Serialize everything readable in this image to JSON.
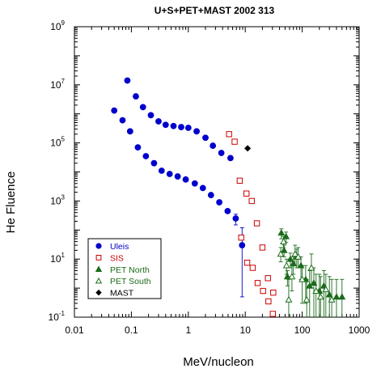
{
  "chart_data": {
    "type": "scatter",
    "title": "U+S+PET+MAST 2002 313",
    "xlabel": "MeV/nucleon",
    "ylabel": "He Fluence",
    "x_scale": "log",
    "y_scale": "log",
    "xlim": [
      0.01,
      1000
    ],
    "ylim": [
      0.1,
      1000000000
    ],
    "x_ticks": [
      {
        "value": 0.01,
        "label": "0.01"
      },
      {
        "value": 0.1,
        "label": "0.1"
      },
      {
        "value": 1,
        "label": "1"
      },
      {
        "value": 10,
        "label": "10"
      },
      {
        "value": 100,
        "label": "100"
      },
      {
        "value": 1000,
        "label": "1000"
      }
    ],
    "y_ticks": [
      {
        "value": 0.1,
        "base": "10",
        "exp": "-1"
      },
      {
        "value": 10,
        "base": "10",
        "exp": "1"
      },
      {
        "value": 1000,
        "base": "10",
        "exp": "3"
      },
      {
        "value": 100000,
        "base": "10",
        "exp": "5"
      },
      {
        "value": 10000000,
        "base": "10",
        "exp": "7"
      },
      {
        "value": 1000000000,
        "base": "10",
        "exp": "9"
      }
    ],
    "grid": false,
    "legend_position": "bottom-left",
    "series": [
      {
        "name": "Uleis",
        "color": "#0000cc",
        "marker": "filled-circle",
        "points": [
          {
            "x": 0.085,
            "y": 14000000
          },
          {
            "x": 0.12,
            "y": 4000000
          },
          {
            "x": 0.16,
            "y": 1700000
          },
          {
            "x": 0.22,
            "y": 900000
          },
          {
            "x": 0.3,
            "y": 550000
          },
          {
            "x": 0.4,
            "y": 420000
          },
          {
            "x": 0.55,
            "y": 380000
          },
          {
            "x": 0.75,
            "y": 350000
          },
          {
            "x": 1.0,
            "y": 330000
          },
          {
            "x": 1.4,
            "y": 250000
          },
          {
            "x": 2.0,
            "y": 150000
          },
          {
            "x": 2.7,
            "y": 80000
          },
          {
            "x": 3.8,
            "y": 45000
          },
          {
            "x": 5.5,
            "y": 30000
          },
          {
            "x": 0.05,
            "y": 1300000
          },
          {
            "x": 0.07,
            "y": 600000
          },
          {
            "x": 0.095,
            "y": 250000
          },
          {
            "x": 0.13,
            "y": 70000
          },
          {
            "x": 0.18,
            "y": 35000
          },
          {
            "x": 0.25,
            "y": 20000
          },
          {
            "x": 0.34,
            "y": 11000
          },
          {
            "x": 0.47,
            "y": 8500
          },
          {
            "x": 0.65,
            "y": 7000
          },
          {
            "x": 0.9,
            "y": 5500
          },
          {
            "x": 1.3,
            "y": 4000
          },
          {
            "x": 1.8,
            "y": 2800
          },
          {
            "x": 2.5,
            "y": 1600
          },
          {
            "x": 3.5,
            "y": 900
          },
          {
            "x": 4.9,
            "y": 450
          },
          {
            "x": 6.8,
            "y": 250,
            "err_low": 150,
            "err_high": 350
          },
          {
            "x": 8.8,
            "y": 30,
            "err_low": 0.5,
            "err_high": 120
          }
        ]
      },
      {
        "name": "SIS",
        "color": "#cc0000",
        "marker": "open-square",
        "points": [
          {
            "x": 5.2,
            "y": 200000
          },
          {
            "x": 6.5,
            "y": 110000
          },
          {
            "x": 8.0,
            "y": 5000
          },
          {
            "x": 10.5,
            "y": 1800
          },
          {
            "x": 13.0,
            "y": 1000
          },
          {
            "x": 16.0,
            "y": 170
          },
          {
            "x": 20.0,
            "y": 25
          },
          {
            "x": 25.0,
            "y": 2.2
          },
          {
            "x": 31.0,
            "y": 0.7
          },
          {
            "x": 38.0,
            "y": 0.05
          },
          {
            "x": 8.5,
            "y": 55
          },
          {
            "x": 10.8,
            "y": 7.5
          },
          {
            "x": 13.5,
            "y": 5
          },
          {
            "x": 16.5,
            "y": 1.5
          },
          {
            "x": 20.5,
            "y": 0.8
          },
          {
            "x": 25.5,
            "y": 0.35
          },
          {
            "x": 30.5,
            "y": 0.13
          },
          {
            "x": 36.0,
            "y": 0.05
          }
        ]
      },
      {
        "name": "PET North",
        "color": "#1a6b1a",
        "marker": "filled-triangle",
        "points": [
          {
            "x": 43,
            "y": 80,
            "err_low": 50,
            "err_high": 110
          },
          {
            "x": 48,
            "y": 20,
            "err_low": 12,
            "err_high": 30
          },
          {
            "x": 52,
            "y": 60,
            "err_low": 38,
            "err_high": 85
          },
          {
            "x": 55,
            "y": 2.5,
            "err_low": 1.2,
            "err_high": 4
          },
          {
            "x": 62,
            "y": 10,
            "err_low": 5,
            "err_high": 16
          },
          {
            "x": 70,
            "y": 7,
            "err_low": 3,
            "err_high": 12
          },
          {
            "x": 80,
            "y": 12,
            "err_low": 5,
            "err_high": 22
          },
          {
            "x": 95,
            "y": 6,
            "err_low": 2,
            "err_high": 12
          },
          {
            "x": 115,
            "y": 2,
            "err_low": 0.3,
            "err_high": 6
          },
          {
            "x": 135,
            "y": 1.2,
            "err_low": 0.1,
            "err_high": 4
          },
          {
            "x": 160,
            "y": 1.5,
            "err_low": 0.1,
            "err_high": 5
          },
          {
            "x": 200,
            "y": 0.8,
            "err_low": 0.1,
            "err_high": 3
          },
          {
            "x": 240,
            "y": 1.2,
            "err_low": 0.1,
            "err_high": 4
          },
          {
            "x": 300,
            "y": 0.6,
            "err_low": 0.1,
            "err_high": 2.5
          },
          {
            "x": 400,
            "y": 0.5,
            "err_low": 0.1,
            "err_high": 2
          },
          {
            "x": 500,
            "y": 0.5,
            "err_low": 0.1,
            "err_high": 2
          }
        ]
      },
      {
        "name": "PET South",
        "color": "#1a6b1a",
        "marker": "open-triangle",
        "points": [
          {
            "x": 42,
            "y": 15,
            "err_low": 8,
            "err_high": 25
          },
          {
            "x": 47,
            "y": 40,
            "err_low": 25,
            "err_high": 60
          },
          {
            "x": 53,
            "y": 6,
            "err_low": 3,
            "err_high": 10
          },
          {
            "x": 58,
            "y": 0.4,
            "err_low": 0.1,
            "err_high": 2
          },
          {
            "x": 66,
            "y": 2.5,
            "err_low": 0.8,
            "err_high": 6
          },
          {
            "x": 75,
            "y": 15,
            "err_low": 6,
            "err_high": 30
          },
          {
            "x": 85,
            "y": 12,
            "err_low": 5,
            "err_high": 25
          },
          {
            "x": 100,
            "y": 2,
            "err_low": 0.3,
            "err_high": 6
          },
          {
            "x": 120,
            "y": 0.4,
            "err_low": 0.1,
            "err_high": 2
          },
          {
            "x": 145,
            "y": 5,
            "err_low": 1,
            "err_high": 15
          },
          {
            "x": 175,
            "y": 0.8,
            "err_low": 0.1,
            "err_high": 3
          },
          {
            "x": 210,
            "y": 0.5,
            "err_low": 0.1,
            "err_high": 2.5
          },
          {
            "x": 260,
            "y": 0.9,
            "err_low": 0.1,
            "err_high": 3
          },
          {
            "x": 330,
            "y": 0.4,
            "err_low": 0.1,
            "err_high": 2
          }
        ]
      },
      {
        "name": "MAST",
        "color": "#000000",
        "marker": "filled-diamond",
        "points": [
          {
            "x": 11,
            "y": 65000
          }
        ]
      }
    ]
  }
}
